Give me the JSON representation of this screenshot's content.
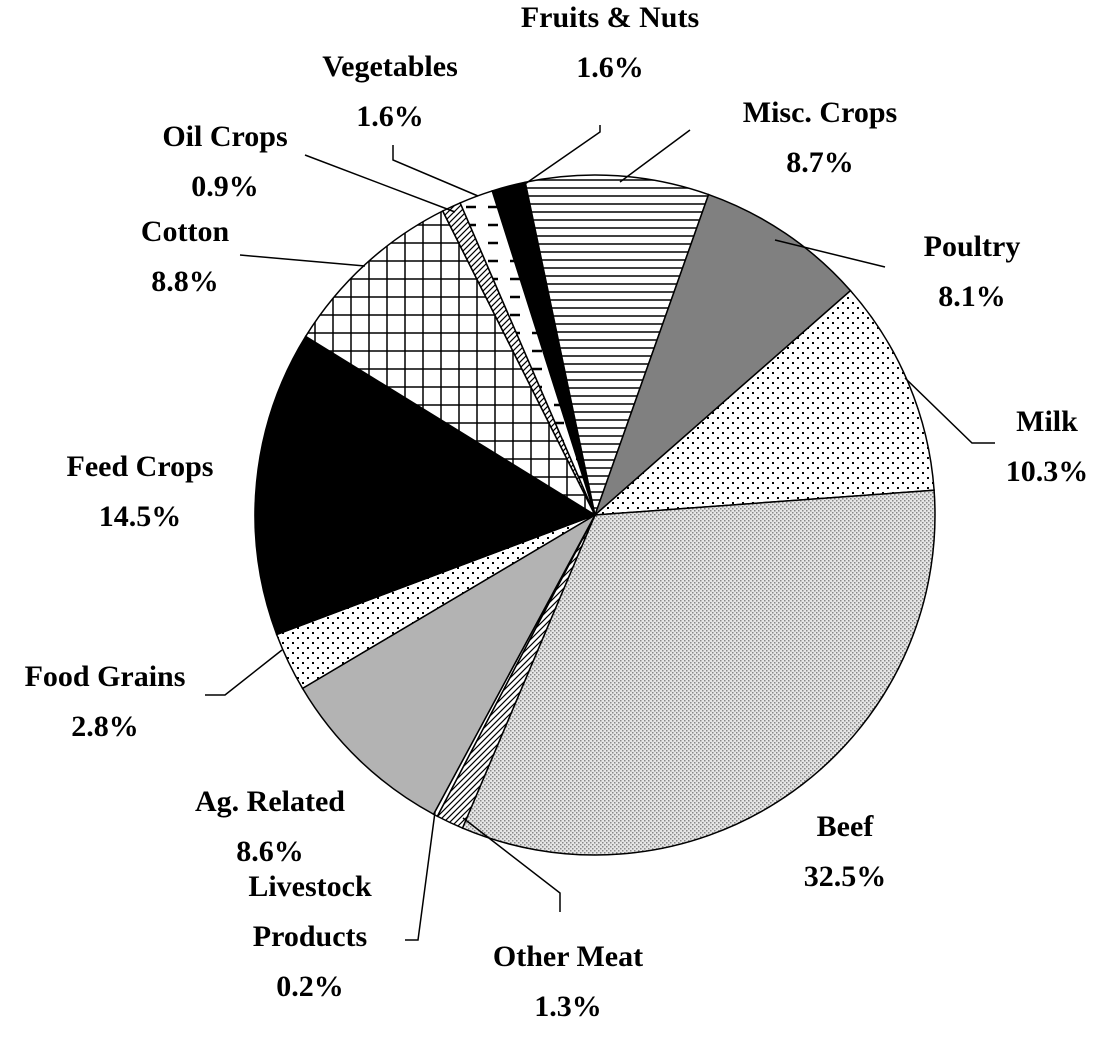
{
  "chart_data": {
    "type": "pie",
    "categories": [
      "Fruits & Nuts",
      "Misc. Crops",
      "Poultry",
      "Milk",
      "Beef",
      "Other Meat",
      "Livestock Products",
      "Ag. Related",
      "Food Grains",
      "Feed Crops",
      "Cotton",
      "Oil Crops",
      "Vegetables"
    ],
    "values": [
      1.6,
      8.7,
      8.1,
      10.3,
      32.5,
      1.3,
      0.2,
      8.6,
      2.8,
      14.5,
      8.8,
      0.9,
      1.6
    ],
    "value_labels": [
      "1.6%",
      "8.7%",
      "8.1%",
      "10.3%",
      "32.5%",
      "1.3%",
      "0.2%",
      "8.6%",
      "2.8%",
      "14.5%",
      "8.8%",
      "0.9%",
      "1.6%"
    ]
  }
}
